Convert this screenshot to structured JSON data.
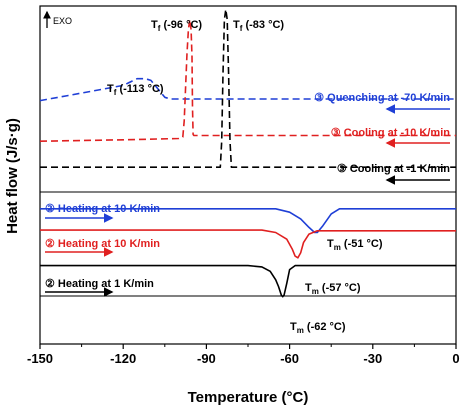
{
  "chart_data": {
    "type": "line",
    "xlabel": "Temperature (°C)",
    "ylabel": "Heat flow (J/s·g)",
    "xlim": [
      -150,
      0
    ],
    "xticks": [
      "-150",
      "-120",
      "-90",
      "-60",
      "-30",
      "0"
    ],
    "exo_label": "EXO",
    "colors": {
      "blue": "#1f3fd6",
      "red": "#e02020",
      "black": "#000000"
    },
    "series": [
      {
        "key": "quench",
        "color": "blue",
        "dashed": true,
        "offset": 0.72,
        "points": [
          [
            -150,
            0.72
          ],
          [
            -140,
            0.735
          ],
          [
            -130,
            0.75
          ],
          [
            -120,
            0.765
          ],
          [
            -115,
            0.785
          ],
          [
            -112,
            0.785
          ],
          [
            -110,
            0.78
          ],
          [
            -108,
            0.76
          ],
          [
            -105,
            0.73
          ],
          [
            -103,
            0.725
          ],
          [
            -100,
            0.725
          ],
          [
            -80,
            0.725
          ],
          [
            -40,
            0.725
          ],
          [
            0,
            0.725
          ]
        ]
      },
      {
        "key": "cool10",
        "color": "red",
        "dashed": true,
        "points": [
          [
            -150,
            0.6
          ],
          [
            -120,
            0.604
          ],
          [
            -100,
            0.608
          ],
          [
            -98.5,
            0.612
          ],
          [
            -98,
            0.66
          ],
          [
            -97.5,
            0.76
          ],
          [
            -97,
            0.86
          ],
          [
            -96.5,
            0.93
          ],
          [
            -96,
            0.96
          ],
          [
            -95.5,
            0.93
          ],
          [
            -95.2,
            0.85
          ],
          [
            -95,
            0.7
          ],
          [
            -94.8,
            0.62
          ],
          [
            -94.5,
            0.617
          ],
          [
            -80,
            0.617
          ],
          [
            -40,
            0.617
          ],
          [
            0,
            0.617
          ]
        ]
      },
      {
        "key": "cool1",
        "color": "black",
        "dashed": true,
        "points": [
          [
            -150,
            0.523
          ],
          [
            -100,
            0.523
          ],
          [
            -85,
            0.523
          ],
          [
            -84.5,
            0.6
          ],
          [
            -84,
            0.8
          ],
          [
            -83.5,
            0.96
          ],
          [
            -83,
            0.99
          ],
          [
            -82.5,
            0.96
          ],
          [
            -82,
            0.8
          ],
          [
            -81.5,
            0.6
          ],
          [
            -81,
            0.523
          ],
          [
            -60,
            0.523
          ],
          [
            0,
            0.523
          ]
        ]
      },
      {
        "key": "heat10b",
        "color": "blue",
        "dashed": false,
        "points": [
          [
            -150,
            0.4
          ],
          [
            -80,
            0.4
          ],
          [
            -65,
            0.4
          ],
          [
            -60,
            0.39
          ],
          [
            -56,
            0.37
          ],
          [
            -53,
            0.345
          ],
          [
            -51,
            0.33
          ],
          [
            -50,
            0.33
          ],
          [
            -48,
            0.35
          ],
          [
            -45,
            0.385
          ],
          [
            -42,
            0.4
          ],
          [
            -30,
            0.4
          ],
          [
            0,
            0.4
          ]
        ]
      },
      {
        "key": "heat10r",
        "color": "red",
        "dashed": false,
        "points": [
          [
            -150,
            0.337
          ],
          [
            -90,
            0.337
          ],
          [
            -70,
            0.337
          ],
          [
            -65,
            0.33
          ],
          [
            -61,
            0.31
          ],
          [
            -59,
            0.28
          ],
          [
            -58,
            0.26
          ],
          [
            -57,
            0.255
          ],
          [
            -56,
            0.27
          ],
          [
            -55,
            0.3
          ],
          [
            -53,
            0.325
          ],
          [
            -50,
            0.335
          ],
          [
            -30,
            0.335
          ],
          [
            0,
            0.335
          ]
        ]
      },
      {
        "key": "heat1",
        "color": "black",
        "dashed": false,
        "points": [
          [
            -150,
            0.232
          ],
          [
            -100,
            0.232
          ],
          [
            -75,
            0.232
          ],
          [
            -70,
            0.228
          ],
          [
            -67,
            0.215
          ],
          [
            -65,
            0.19
          ],
          [
            -64,
            0.17
          ],
          [
            -63,
            0.145
          ],
          [
            -62.5,
            0.14
          ],
          [
            -62,
            0.145
          ],
          [
            -61,
            0.18
          ],
          [
            -60,
            0.22
          ],
          [
            -58,
            0.232
          ],
          [
            -30,
            0.232
          ],
          [
            0,
            0.232
          ]
        ]
      }
    ],
    "annotations": {
      "tf_113": {
        "prefix": "T",
        "sub": "f",
        "text": " (-113 °C)"
      },
      "tf_96": {
        "prefix": "T",
        "sub": "f",
        "text": " (-96 °C)"
      },
      "tf_83": {
        "prefix": "T",
        "sub": "f",
        "text": " (-83 °C)"
      },
      "tm_51": {
        "prefix": "T",
        "sub": "m",
        "text": " (-51 °C)"
      },
      "tm_57": {
        "prefix": "T",
        "sub": "m",
        "text": " (-57 °C)"
      },
      "tm_62": {
        "prefix": "T",
        "sub": "m",
        "text": " (-62 °C)"
      },
      "quench_label": "③ Quenching at -70 K/min",
      "cool10_label": "③ Cooling at -10 K/min",
      "cool1_label": "③ Cooling at -1 K/min",
      "heat10b_label": "② Heating at 10 K/min",
      "heat10r_label": "② Heating at 10 K/min",
      "heat1_label": "② Heating at 1 K/min"
    }
  }
}
